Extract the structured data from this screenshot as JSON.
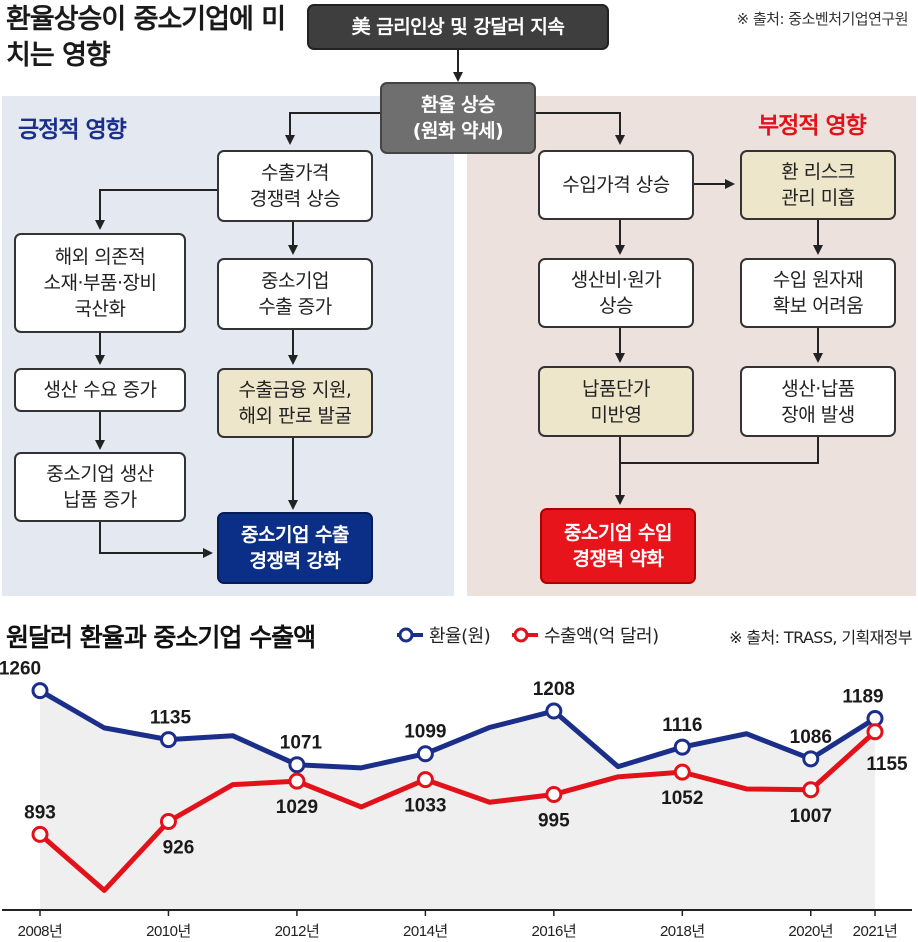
{
  "header": {
    "title": "환율상승이 중소기업에 미치는 영향",
    "source": "※ 출처: 중소벤처기업연구원"
  },
  "flow": {
    "top_cause": "美 금리인상 및 강달러 지속",
    "center": "환율 상승\n(원화 약세)",
    "positive": {
      "title": "긍정적 영향",
      "b1": "수출가격\n경쟁력 상승",
      "b2": "해외 의존적\n소재·부품·장비\n국산화",
      "b3": "중소기업\n수출 증가",
      "b4": "생산 수요 증가",
      "b5": "수출금융 지원,\n해외 판로 발굴",
      "b6": "중소기업 생산\n납품 증가",
      "result": "중소기업 수출\n경쟁력 강화"
    },
    "negative": {
      "title": "부정적 영향",
      "b1": "수입가격 상승",
      "b2": "환 리스크\n관리 미흡",
      "b3": "생산비·원가\n상승",
      "b4": "수입 원자재\n확보 어려움",
      "b5": "납품단가\n미반영",
      "b6": "생산·납품\n장애 발생",
      "result": "중소기업 수입\n경쟁력 약화"
    }
  },
  "chart_header": {
    "title": "원달러 환율과 중소기업 수출액",
    "legend_rate": "환율(원)",
    "legend_export": "수출액(억 달러)",
    "source": "※ 출처: TRASS, 기획재정부"
  },
  "colors": {
    "rate": "#1b2f8a",
    "export": "#e3121a",
    "positive_title": "#1b2f8a",
    "negative_title": "#e3121a"
  },
  "chart_data": {
    "type": "line",
    "x": [
      2008,
      2009,
      2010,
      2011,
      2012,
      2013,
      2014,
      2015,
      2016,
      2017,
      2018,
      2019,
      2020,
      2021
    ],
    "x_tick_labels": [
      "2008년",
      "2010년",
      "2012년",
      "2014년",
      "2016년",
      "2018년",
      "2020년",
      "2021년"
    ],
    "x_tick_years": [
      2008,
      2010,
      2012,
      2014,
      2016,
      2018,
      2020,
      2021
    ],
    "series": [
      {
        "name": "환율(원)",
        "values": [
          1260,
          1165,
          1135,
          1145,
          1071,
          1063,
          1099,
          1166,
          1208,
          1066,
          1116,
          1150,
          1086,
          1189
        ],
        "labels": {
          "2008": "1260",
          "2010": "1135",
          "2012": "1071",
          "2014": "1099",
          "2016": "1208",
          "2018": "1116",
          "2020": "1086",
          "2021": "1189"
        }
      },
      {
        "name": "수출액(억 달러)",
        "values": [
          893,
          750,
          926,
          1020,
          1029,
          963,
          1033,
          975,
          995,
          1040,
          1052,
          1009,
          1007,
          1155
        ],
        "labels": {
          "2008": "893",
          "2010": "926",
          "2012": "1029",
          "2014": "1033",
          "2016": "995",
          "2018": "1052",
          "2020": "1007",
          "2021": "1155"
        }
      }
    ],
    "markers_at": [
      2008,
      2010,
      2012,
      2014,
      2016,
      2018,
      2020,
      2021
    ],
    "title": "원달러 환율과 중소기업 수출액",
    "xlabel": "",
    "ylabel": "",
    "ylim": [
      700,
      1300
    ]
  }
}
